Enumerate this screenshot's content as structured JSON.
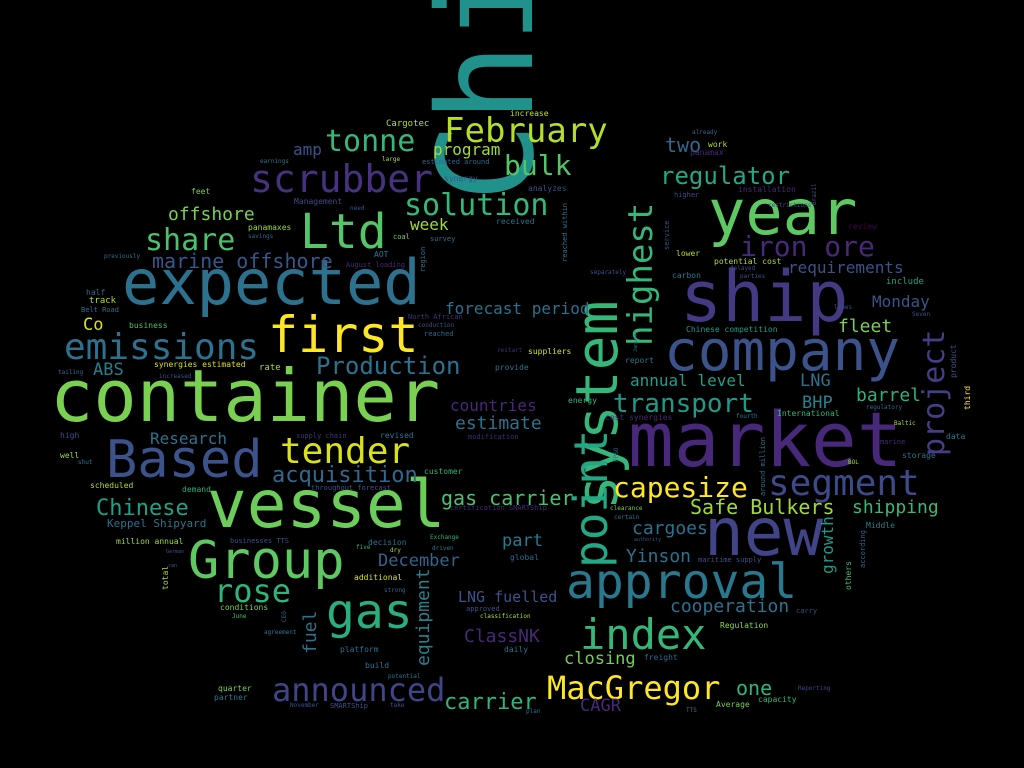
{
  "word_cloud": {
    "words": [
      {
        "text": "China",
        "color": "#21918c"
      },
      {
        "text": "container",
        "color": "#7ad151"
      },
      {
        "text": "market",
        "color": "#482878"
      },
      {
        "text": "vessel",
        "color": "#6ccd5a"
      },
      {
        "text": "expected",
        "color": "#2c728e"
      },
      {
        "text": "ship",
        "color": "#443983"
      },
      {
        "text": "year",
        "color": "#5ec962"
      },
      {
        "text": "company",
        "color": "#3b528b"
      },
      {
        "text": "system",
        "color": "#35b779"
      },
      {
        "text": "new",
        "color": "#414487"
      },
      {
        "text": "approval",
        "color": "#2a788e"
      },
      {
        "text": "Group",
        "color": "#5ec962"
      },
      {
        "text": "Based",
        "color": "#3b528b"
      },
      {
        "text": "point",
        "color": "#22a884"
      },
      {
        "text": "index",
        "color": "#35b779"
      },
      {
        "text": "first",
        "color": "#fde725"
      },
      {
        "text": "Ltd",
        "color": "#54c568"
      },
      {
        "text": "gas",
        "color": "#29af7f"
      },
      {
        "text": "segment",
        "color": "#3e4989"
      },
      {
        "text": "emissions",
        "color": "#2c728e"
      },
      {
        "text": "highest",
        "color": "#35b779"
      },
      {
        "text": "MacGregor",
        "color": "#fde725"
      },
      {
        "text": "tender",
        "color": "#d8e219"
      },
      {
        "text": "scrubber",
        "color": "#46327e"
      },
      {
        "text": "February",
        "color": "#b5de2b"
      },
      {
        "text": "rose",
        "color": "#2fb47c"
      },
      {
        "text": "tonne",
        "color": "#35b779"
      },
      {
        "text": "announced",
        "color": "#414487"
      },
      {
        "text": "project",
        "color": "#433e85"
      },
      {
        "text": "share",
        "color": "#4ac16d"
      },
      {
        "text": "capesize",
        "color": "#fde725"
      },
      {
        "text": "solution",
        "color": "#35b779"
      },
      {
        "text": "iron ore",
        "color": "#482878"
      },
      {
        "text": "regulator",
        "color": "#22a884"
      },
      {
        "text": "transport",
        "color": "#1f9a8a"
      },
      {
        "text": "bulk",
        "color": "#52c569"
      },
      {
        "text": "Production",
        "color": "#2c728e"
      },
      {
        "text": "acquisition",
        "color": "#31688e"
      },
      {
        "text": "Safe Bulkers",
        "color": "#a0da39"
      },
      {
        "text": "carrier",
        "color": "#2fb47c"
      },
      {
        "text": "marine offshore",
        "color": "#39568c"
      },
      {
        "text": "Chinese",
        "color": "#1fa188"
      },
      {
        "text": "offshore",
        "color": "#7ad151"
      },
      {
        "text": "gas carrier",
        "color": "#4ac16d"
      },
      {
        "text": "equipment",
        "color": "#26828e"
      },
      {
        "text": "fuel",
        "color": "#2c728e"
      },
      {
        "text": "two",
        "color": "#31688e"
      },
      {
        "text": "estimate",
        "color": "#2c728e"
      },
      {
        "text": "cooperation",
        "color": "#2c728e"
      },
      {
        "text": "shipping",
        "color": "#37b878"
      },
      {
        "text": "barrel",
        "color": "#2db27d"
      },
      {
        "text": "growth",
        "color": "#1e9c89"
      },
      {
        "text": "fleet",
        "color": "#7ad151"
      },
      {
        "text": "annual level",
        "color": "#1f9e89"
      },
      {
        "text": "cargoes",
        "color": "#2c728e"
      },
      {
        "text": "one",
        "color": "#2fb47c"
      },
      {
        "text": "Yinson",
        "color": "#2c728e"
      },
      {
        "text": "closing",
        "color": "#73d056"
      },
      {
        "text": "ClassNK",
        "color": "#482878"
      },
      {
        "text": "LNG fuelled",
        "color": "#3b528b"
      },
      {
        "text": "requirements",
        "color": "#3b528b"
      },
      {
        "text": "December",
        "color": "#33638d"
      },
      {
        "text": "part",
        "color": "#2a788e"
      },
      {
        "text": "CAGR",
        "color": "#482878"
      },
      {
        "text": "forecast period",
        "color": "#2c728e"
      },
      {
        "text": "countries",
        "color": "#482878"
      },
      {
        "text": "BHP",
        "color": "#26828e"
      },
      {
        "text": "LNG",
        "color": "#2c728e"
      },
      {
        "text": "Monday",
        "color": "#3b528b"
      },
      {
        "text": "Research",
        "color": "#2c728e"
      },
      {
        "text": "ABS",
        "color": "#277f8e"
      },
      {
        "text": "Co",
        "color": "#d8e219"
      },
      {
        "text": "program",
        "color": "#a5db36"
      },
      {
        "text": "amp",
        "color": "#3b528b"
      },
      {
        "text": "week",
        "color": "#a0da39"
      },
      {
        "text": "Keppel Shipyard",
        "color": "#2c728e"
      },
      {
        "text": "Cargotec",
        "color": "#b5de2b"
      },
      {
        "text": "increase",
        "color": "#c2df23"
      },
      {
        "text": "work",
        "color": "#b5de2b"
      },
      {
        "text": "panamax",
        "color": "#482878"
      },
      {
        "text": "installation",
        "color": "#482878"
      },
      {
        "text": "higher",
        "color": "#3e4a89"
      },
      {
        "text": "review",
        "color": "#440154"
      },
      {
        "text": "include",
        "color": "#1fa188"
      },
      {
        "text": "potential cost",
        "color": "#addc30"
      },
      {
        "text": "Chinese competition",
        "color": "#1f9e89"
      },
      {
        "text": "International",
        "color": "#35b779"
      },
      {
        "text": "regulatory",
        "color": "#31688e"
      },
      {
        "text": "data",
        "color": "#2a788e"
      },
      {
        "text": "storage",
        "color": "#2c728e"
      },
      {
        "text": "Middle",
        "color": "#27808e"
      },
      {
        "text": "third",
        "color": "#fde725"
      },
      {
        "text": "product",
        "color": "#39568c"
      },
      {
        "text": "others",
        "color": "#4ac16d"
      },
      {
        "text": "according",
        "color": "#31688e"
      },
      {
        "text": "carry",
        "color": "#3b528b"
      },
      {
        "text": "Regulation",
        "color": "#8fd744"
      },
      {
        "text": "capacity",
        "color": "#35b779"
      },
      {
        "text": "Average",
        "color": "#73d056"
      },
      {
        "text": "feet",
        "color": "#7ad151"
      },
      {
        "text": "Management",
        "color": "#3e4989"
      },
      {
        "text": "panamaxes",
        "color": "#95d840"
      },
      {
        "text": "savings",
        "color": "#31688e"
      },
      {
        "text": "previously",
        "color": "#2c728e"
      },
      {
        "text": "half",
        "color": "#31688e"
      },
      {
        "text": "track",
        "color": "#b5de2b"
      },
      {
        "text": "Belt Road",
        "color": "#2c728e"
      },
      {
        "text": "business",
        "color": "#4ac16d"
      },
      {
        "text": "tailing",
        "color": "#31688e"
      },
      {
        "text": "increased",
        "color": "#3b528b"
      },
      {
        "text": "rate",
        "color": "#addc30"
      },
      {
        "text": "synergies estimated",
        "color": "#d8e219"
      },
      {
        "text": "high",
        "color": "#3b528b"
      },
      {
        "text": "well",
        "color": "#95d840"
      },
      {
        "text": "shut",
        "color": "#2a788e"
      },
      {
        "text": "scheduled",
        "color": "#addc30"
      },
      {
        "text": "demand",
        "color": "#29af7f"
      },
      {
        "text": "million annual",
        "color": "#9fda3a"
      },
      {
        "text": "supply chain",
        "color": "#46327e"
      },
      {
        "text": "revised",
        "color": "#2a788e"
      },
      {
        "text": "throughout forecast",
        "color": "#3b528b"
      },
      {
        "text": "customer",
        "color": "#2fb47c"
      },
      {
        "text": "North African",
        "color": "#46327e"
      },
      {
        "text": "reached",
        "color": "#31688e"
      },
      {
        "text": "conditions",
        "color": "#7ad151"
      },
      {
        "text": "quarter",
        "color": "#7ad151"
      },
      {
        "text": "partner",
        "color": "#2a788e"
      },
      {
        "text": "platform",
        "color": "#2c728e"
      },
      {
        "text": "build",
        "color": "#2c728e"
      },
      {
        "text": "potential",
        "color": "#2a788e"
      },
      {
        "text": "SMARTShip",
        "color": "#3b528b"
      },
      {
        "text": "additional",
        "color": "#d8e219"
      },
      {
        "text": "decision",
        "color": "#2c728e"
      },
      {
        "text": "approved",
        "color": "#3b528b"
      },
      {
        "text": "classification",
        "color": "#b5de2b"
      },
      {
        "text": "daily",
        "color": "#2c728e"
      },
      {
        "text": "global",
        "color": "#31688e"
      },
      {
        "text": "maritime supply",
        "color": "#3b528b"
      },
      {
        "text": "certain",
        "color": "#2a788e"
      },
      {
        "text": "clearance",
        "color": "#7ad151"
      },
      {
        "text": "energy",
        "color": "#2fb47c"
      },
      {
        "text": "suppliers",
        "color": "#d8e219"
      },
      {
        "text": "provide",
        "color": "#2c728e"
      },
      {
        "text": "report",
        "color": "#2a788e"
      },
      {
        "text": "cost synergies",
        "color": "#482878"
      },
      {
        "text": "modification",
        "color": "#482878"
      },
      {
        "text": "fourth",
        "color": "#2c728e"
      },
      {
        "text": "lower",
        "color": "#b5de2b"
      },
      {
        "text": "carbon",
        "color": "#2a788e"
      },
      {
        "text": "restrictions",
        "color": "#3b528b"
      },
      {
        "text": "delayed",
        "color": "#3e4989"
      },
      {
        "text": "parties",
        "color": "#3b528b"
      },
      {
        "text": "earnings",
        "color": "#2a788e"
      },
      {
        "text": "large",
        "color": "#addc30"
      },
      {
        "text": "estimated around",
        "color": "#31688e"
      },
      {
        "text": "synergy",
        "color": "#3b528b"
      },
      {
        "text": "analyzes",
        "color": "#3b528b"
      },
      {
        "text": "received",
        "color": "#2c728e"
      },
      {
        "text": "need",
        "color": "#3b528b"
      },
      {
        "text": "coal",
        "color": "#73d056"
      },
      {
        "text": "survey",
        "color": "#2c728e"
      },
      {
        "text": "AOT",
        "color": "#2a788e"
      },
      {
        "text": "August loading",
        "color": "#482878"
      },
      {
        "text": "already",
        "color": "#31688e"
      },
      {
        "text": "restart",
        "color": "#482878"
      },
      {
        "text": "Baltic",
        "color": "#addc30"
      },
      {
        "text": "lines",
        "color": "#3b528b"
      },
      {
        "text": "marine",
        "color": "#482878"
      },
      {
        "text": "BOL",
        "color": "#9fda3a"
      },
      {
        "text": "Exchange",
        "color": "#2fb47c"
      },
      {
        "text": "driven",
        "color": "#2a788e"
      },
      {
        "text": "dry",
        "color": "#addc30"
      },
      {
        "text": "strong",
        "color": "#31688e"
      },
      {
        "text": "five",
        "color": "#2fb47c"
      },
      {
        "text": "CEO",
        "color": "#2c728e"
      },
      {
        "text": "June",
        "color": "#4ac16d"
      },
      {
        "text": "agreement",
        "color": "#2a788e"
      },
      {
        "text": "November",
        "color": "#3b528b"
      },
      {
        "text": "plan",
        "color": "#2c728e"
      },
      {
        "text": "take",
        "color": "#3b528b"
      },
      {
        "text": "TTS",
        "color": "#2c728e"
      },
      {
        "text": "Reporting",
        "color": "#3e4989"
      },
      {
        "text": "freight",
        "color": "#31688e"
      },
      {
        "text": "reached within",
        "color": "#2c728e"
      },
      {
        "text": "service",
        "color": "#3b528b"
      },
      {
        "text": "around million",
        "color": "#2c728e"
      },
      {
        "text": "region",
        "color": "#2a788e"
      },
      {
        "text": "separately",
        "color": "#3b528b"
      },
      {
        "text": "January",
        "color": "#2c728e"
      },
      {
        "text": "total",
        "color": "#addc30"
      },
      {
        "text": "German",
        "color": "#3b528b"
      },
      {
        "text": "Brazil",
        "color": "#3b528b"
      },
      {
        "text": "businesses TTS",
        "color": "#3b528b"
      },
      {
        "text": "Seven",
        "color": "#3b528b"
      },
      {
        "text": "FPSO",
        "color": "#2c728e"
      },
      {
        "text": "authority",
        "color": "#3b528b"
      },
      {
        "text": "certification SMARTShip",
        "color": "#482878"
      },
      {
        "text": "conduction",
        "color": "#3b528b"
      },
      {
        "text": "ran",
        "color": "#3b528b"
      }
    ]
  }
}
